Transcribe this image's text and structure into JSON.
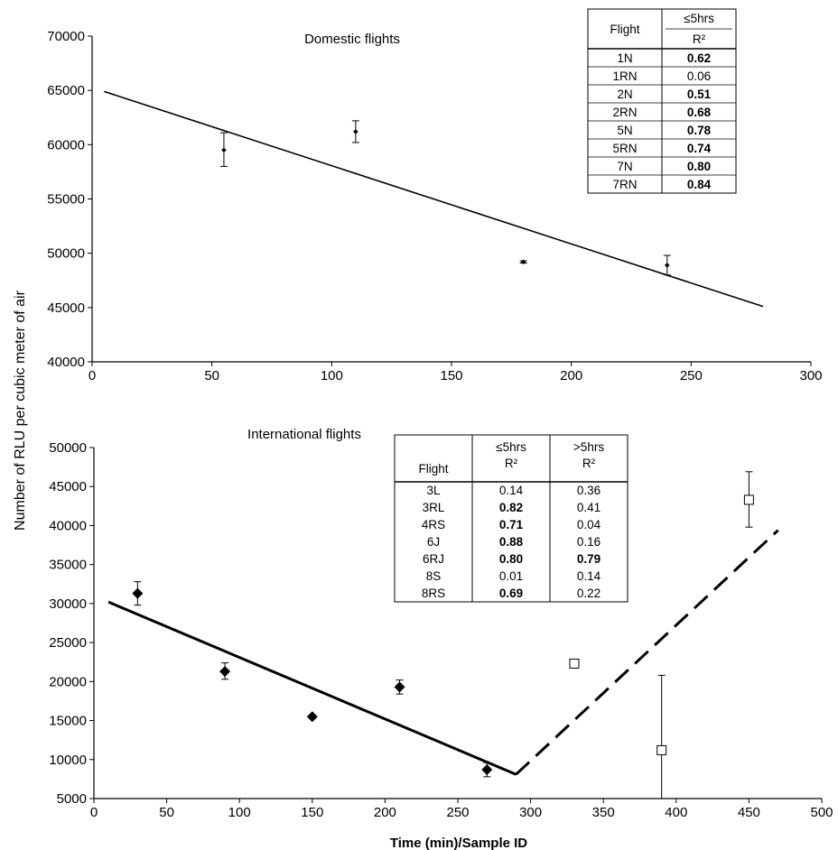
{
  "shared_ylabel": "Number of RLU per cubic meter of air",
  "chart_data": [
    {
      "type": "scatter",
      "title": "Domestic flights",
      "xlabel": "",
      "ylabel": "Number of RLU per cubic meter of air",
      "xlim": [
        0,
        300
      ],
      "ylim": [
        40000,
        70000
      ],
      "xticks": [
        "0",
        "50",
        "100",
        "150",
        "200",
        "250",
        "300"
      ],
      "yticks": [
        "40000",
        "45000",
        "50000",
        "55000",
        "60000",
        "65000",
        "70000"
      ],
      "grid": false,
      "series": [
        {
          "marker": "small-diamond",
          "points": [
            {
              "x": 55,
              "y": 59500,
              "err_low": 58000,
              "err_high": 61100
            },
            {
              "x": 110,
              "y": 61200,
              "err_low": 60200,
              "err_high": 62200
            },
            {
              "x": 180,
              "y": 49200,
              "err_low": 49100,
              "err_high": 49300
            },
            {
              "x": 240,
              "y": 48900,
              "err_low": 48000,
              "err_high": 49800
            }
          ]
        }
      ],
      "trendlines": [
        {
          "style": "solid",
          "x": [
            5,
            280
          ],
          "y": [
            64900,
            45100
          ]
        }
      ],
      "table": {
        "header_flight": "Flight",
        "header_group": "≤5hrs",
        "header_r2": "R²",
        "rows": [
          {
            "flight": "1N",
            "r2": "0.62",
            "bold": true
          },
          {
            "flight": "1RN",
            "r2": "0.06",
            "bold": false
          },
          {
            "flight": "2N",
            "r2": "0.51",
            "bold": true
          },
          {
            "flight": "2RN",
            "r2": "0.68",
            "bold": true
          },
          {
            "flight": "5N",
            "r2": "0.78",
            "bold": true
          },
          {
            "flight": "5RN",
            "r2": "0.74",
            "bold": true
          },
          {
            "flight": "7N",
            "r2": "0.80",
            "bold": true
          },
          {
            "flight": "7RN",
            "r2": "0.84",
            "bold": true
          }
        ]
      }
    },
    {
      "type": "scatter",
      "title": "International flights",
      "xlabel": "Time (min)/Sample ID",
      "ylabel": "Number of RLU per cubic meter of air",
      "xlim": [
        0,
        500
      ],
      "ylim": [
        5000,
        50000
      ],
      "xticks": [
        "0",
        "50",
        "100",
        "150",
        "200",
        "250",
        "300",
        "350",
        "400",
        "450",
        "500"
      ],
      "yticks": [
        "5000",
        "10000",
        "15000",
        "20000",
        "25000",
        "30000",
        "35000",
        "40000",
        "45000",
        "50000"
      ],
      "grid": false,
      "series": [
        {
          "group": "≤5hrs",
          "marker": "filled-diamond",
          "points": [
            {
              "x": 30,
              "y": 31300,
              "err_low": 29800,
              "err_high": 32800
            },
            {
              "x": 90,
              "y": 21300,
              "err_low": 20300,
              "err_high": 22400
            },
            {
              "x": 150,
              "y": 15500,
              "err_low": 15300,
              "err_high": 15700
            },
            {
              "x": 210,
              "y": 19300,
              "err_low": 18400,
              "err_high": 20200
            },
            {
              "x": 270,
              "y": 8700,
              "err_low": 7800,
              "err_high": 9600
            }
          ]
        },
        {
          "group": ">5hrs",
          "marker": "open-square",
          "points": [
            {
              "x": 330,
              "y": 22300,
              "err_low": 22300,
              "err_high": 22300
            },
            {
              "x": 390,
              "y": 11200,
              "err_low": 5000,
              "err_high": 20800
            },
            {
              "x": 450,
              "y": 43300,
              "err_low": 39800,
              "err_high": 46900
            }
          ]
        }
      ],
      "trendlines": [
        {
          "style": "solid",
          "x": [
            10,
            290
          ],
          "y": [
            30200,
            8100
          ]
        },
        {
          "style": "dashed",
          "x": [
            290,
            470
          ],
          "y": [
            8100,
            39400
          ]
        }
      ],
      "table": {
        "header_flight": "Flight",
        "header_group1": "≤5hrs",
        "header_group2": ">5hrs",
        "header_r2": "R²",
        "rows": [
          {
            "flight": "3L",
            "r2a": "0.14",
            "bold_a": false,
            "r2b": "0.36",
            "bold_b": false
          },
          {
            "flight": "3RL",
            "r2a": "0.82",
            "bold_a": true,
            "r2b": "0.41",
            "bold_b": false
          },
          {
            "flight": "4RS",
            "r2a": "0.71",
            "bold_a": true,
            "r2b": "0.04",
            "bold_b": false
          },
          {
            "flight": "6J",
            "r2a": "0.88",
            "bold_a": true,
            "r2b": "0.16",
            "bold_b": false
          },
          {
            "flight": "6RJ",
            "r2a": "0.80",
            "bold_a": true,
            "r2b": "0.79",
            "bold_b": true
          },
          {
            "flight": "8S",
            "r2a": "0.01",
            "bold_a": false,
            "r2b": "0.14",
            "bold_b": false
          },
          {
            "flight": "8RS",
            "r2a": "0.69",
            "bold_a": true,
            "r2b": "0.22",
            "bold_b": false
          }
        ]
      }
    }
  ]
}
